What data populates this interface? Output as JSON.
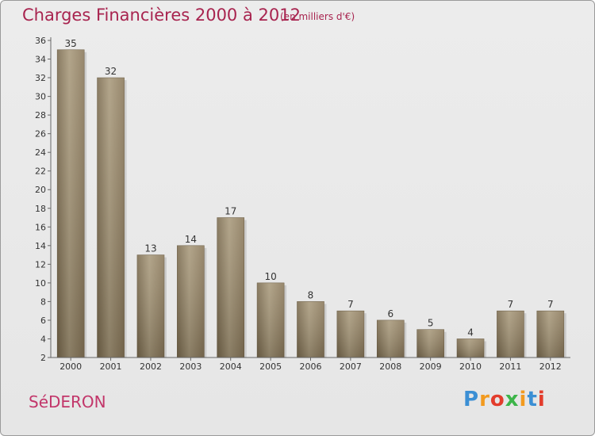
{
  "chart_data": {
    "type": "bar",
    "title": "Charges Financières 2000 à 2012",
    "subtitle": "(en milliers d'€)",
    "categories": [
      "2000",
      "2001",
      "2002",
      "2003",
      "2004",
      "2005",
      "2006",
      "2007",
      "2008",
      "2009",
      "2010",
      "2011",
      "2012"
    ],
    "values": [
      35,
      32,
      13,
      14,
      17,
      10,
      8,
      7,
      6,
      5,
      4,
      7,
      7
    ],
    "ylim": [
      2,
      36
    ],
    "yticks": [
      2,
      4,
      6,
      8,
      10,
      12,
      14,
      16,
      18,
      20,
      22,
      24,
      26,
      28,
      30,
      32,
      34,
      36
    ],
    "grid": false,
    "bar_color": "#8f7d5f",
    "xlabel": "",
    "ylabel": ""
  },
  "footer": {
    "commune": "SéDERON",
    "logo_letters": [
      "P",
      "r",
      "o",
      "x",
      "i",
      "t",
      "i"
    ],
    "logo_colors": [
      "#3b8fd4",
      "#f29a1f",
      "#e33c2c",
      "#3db54a",
      "#f29a1f",
      "#3b8fd4",
      "#e33c2c"
    ]
  }
}
